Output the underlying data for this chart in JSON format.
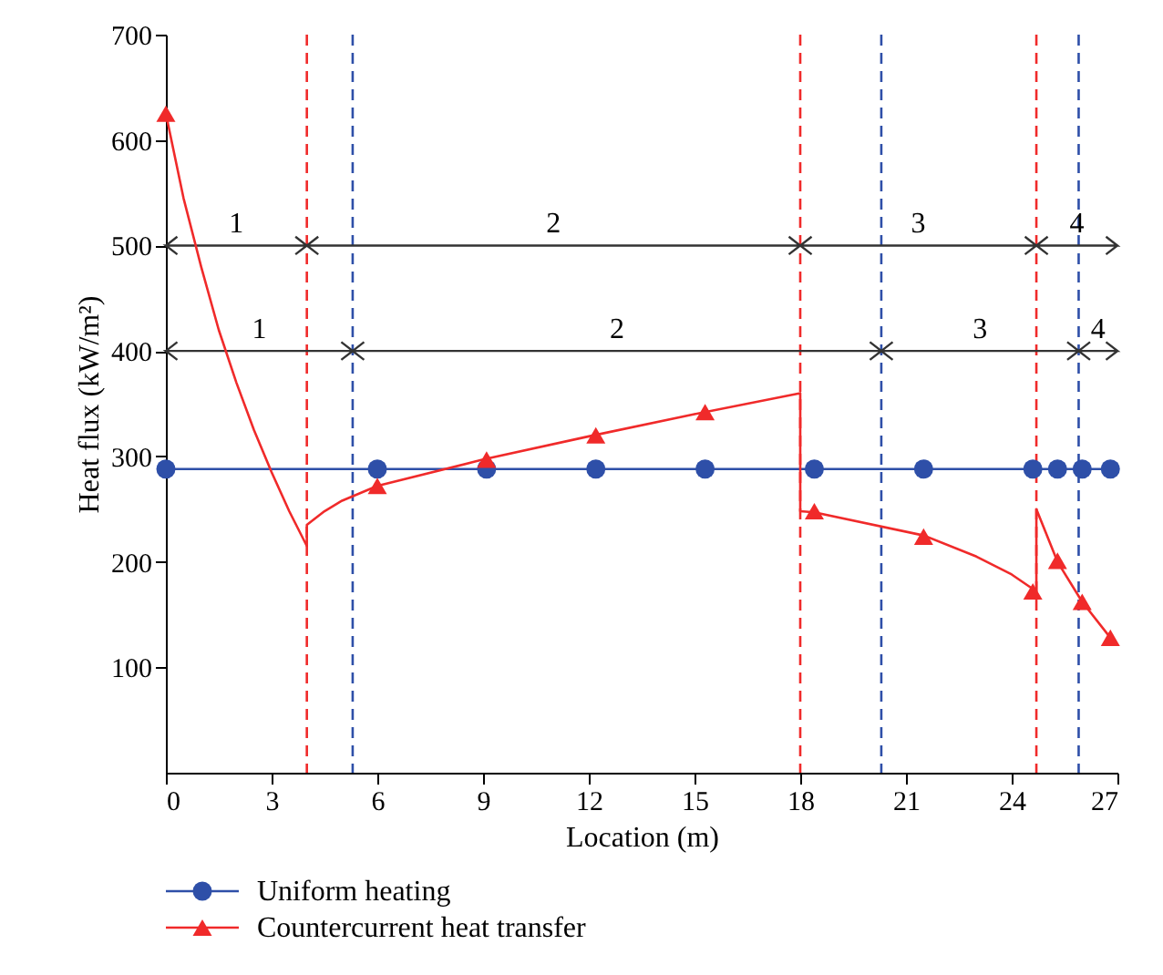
{
  "chart_data": {
    "type": "line",
    "xlabel": "Location (m)",
    "ylabel": "Heat flux (kW/m²)",
    "xlim": [
      0,
      27
    ],
    "xticks": [
      0,
      3,
      6,
      9,
      12,
      15,
      18,
      21,
      24,
      27
    ],
    "ylim": [
      0,
      700
    ],
    "yticks": [
      100,
      200,
      300,
      400,
      500,
      600,
      700
    ],
    "grid": false,
    "legend": "bottom",
    "series": [
      {
        "name": "Uniform heating",
        "color": "#2e4fa8",
        "marker": "circle",
        "x": [
          0,
          6,
          9.1,
          12.2,
          15.3,
          18.4,
          21.5,
          24.6,
          25.3,
          26,
          26.8
        ],
        "values": [
          288,
          288,
          288,
          288,
          288,
          288,
          288,
          288,
          288,
          288,
          288
        ]
      },
      {
        "color": "#f02a2a",
        "marker": "none",
        "x": [
          0,
          0.5,
          1,
          1.5,
          2,
          2.5,
          3,
          3.5,
          4,
          4,
          4.5,
          5,
          6,
          9,
          12,
          15,
          18,
          18,
          18.4,
          21.5,
          23,
          24,
          24.7,
          24.7,
          25.3,
          26,
          26.8
        ],
        "values": [
          625,
          545,
          480,
          420,
          370,
          325,
          285,
          248,
          215,
          235,
          248,
          258,
          272,
          297,
          319,
          340,
          360,
          248,
          247,
          225,
          205,
          188,
          172,
          250,
          200,
          162,
          128
        ]
      },
      {
        "name": "Countercurrent heat transfer",
        "color": "#f02a2a",
        "type": "scatter",
        "marker": "triangle",
        "x": [
          0,
          6,
          9.1,
          12.2,
          15.3,
          18.4,
          21.5,
          24.6,
          25.3,
          26,
          26.8
        ],
        "values": [
          625,
          272,
          297,
          320,
          342,
          248,
          224,
          172,
          201,
          162,
          128
        ]
      }
    ],
    "ref_lines": [
      {
        "axis": "x",
        "value": 4,
        "color": "#f02a2a",
        "line_style": "dashed"
      },
      {
        "axis": "x",
        "value": 18,
        "color": "#f02a2a",
        "line_style": "dashed"
      },
      {
        "axis": "x",
        "value": 24.7,
        "color": "#f02a2a",
        "line_style": "dashed"
      },
      {
        "axis": "x",
        "value": 5.3,
        "color": "#2e4fa8",
        "line_style": "dashed"
      },
      {
        "axis": "x",
        "value": 20.3,
        "color": "#2e4fa8",
        "line_style": "dashed"
      },
      {
        "axis": "x",
        "value": 25.9,
        "color": "#2e4fa8",
        "line_style": "dashed"
      },
      {
        "axis": "y",
        "value": 500,
        "color": "#333333",
        "line_style": "solid"
      },
      {
        "axis": "y",
        "value": 400,
        "color": "#333333",
        "line_style": "solid"
      }
    ],
    "annotations": [
      "1",
      "2",
      "3",
      "4",
      "1",
      "2",
      "3",
      "4"
    ]
  }
}
